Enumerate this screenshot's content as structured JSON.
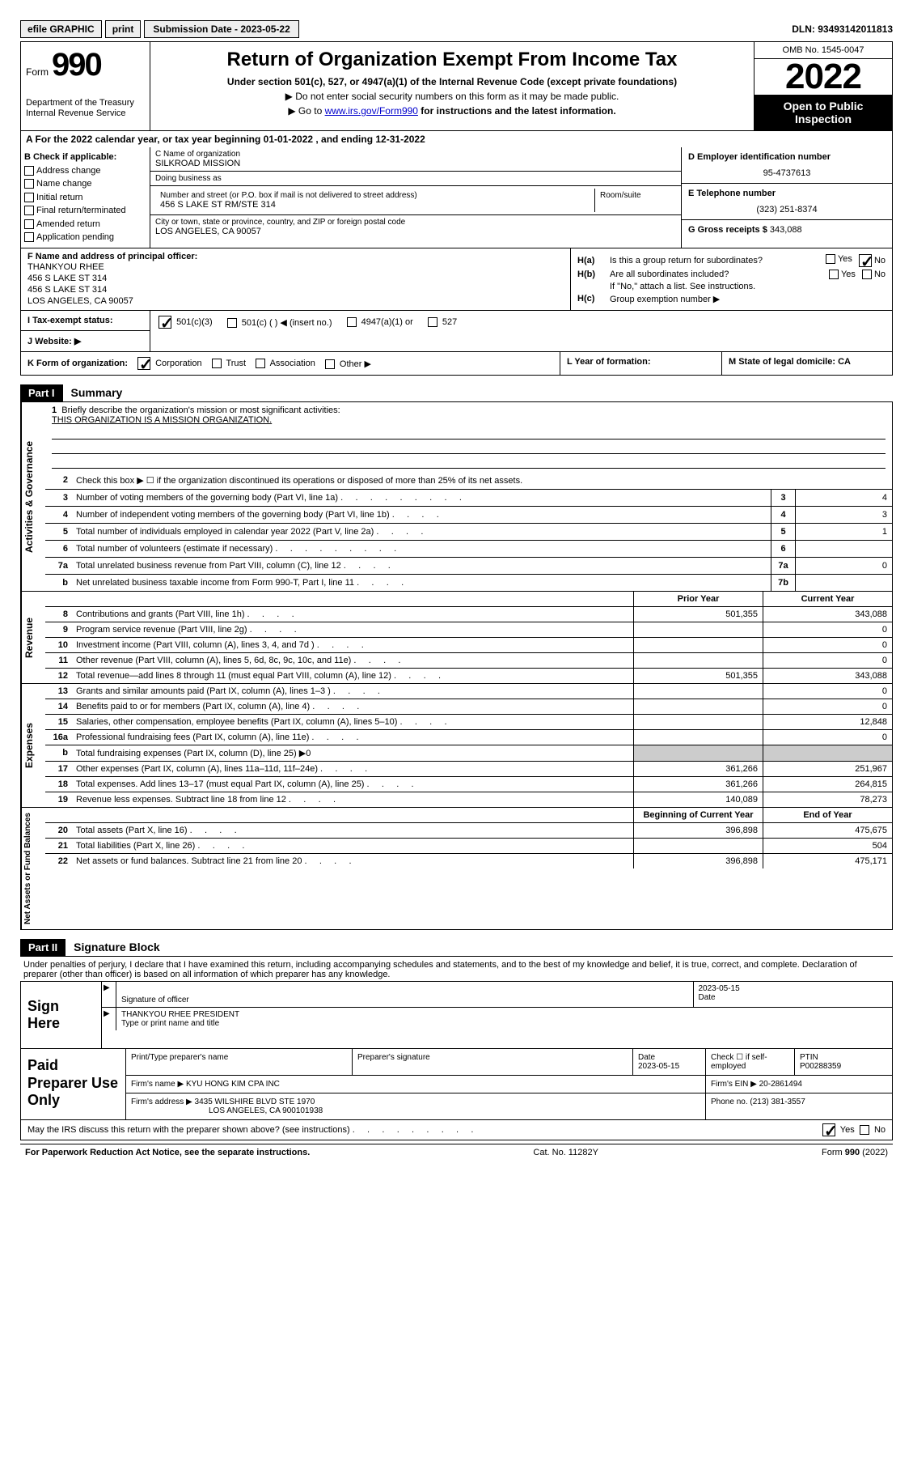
{
  "topbar": {
    "efile": "efile GRAPHIC",
    "print": "print",
    "submission_label": "Submission Date - 2023-05-22",
    "dln": "DLN: 93493142011813"
  },
  "header": {
    "form_word": "Form",
    "form_num": "990",
    "treasury": "Department of the Treasury",
    "irs": "Internal Revenue Service",
    "title": "Return of Organization Exempt From Income Tax",
    "under": "Under section 501(c), 527, or 4947(a)(1) of the Internal Revenue Code (except private foundations)",
    "ssn": "▶ Do not enter social security numbers on this form as it may be made public.",
    "goto_pre": "▶ Go to ",
    "goto_link": "www.irs.gov/Form990",
    "goto_post": " for instructions and the latest information.",
    "omb": "OMB No. 1545-0047",
    "year": "2022",
    "open": "Open to Public Inspection"
  },
  "rowA": "A For the 2022 calendar year, or tax year beginning 01-01-2022    , and ending 12-31-2022",
  "colB": {
    "lbl": "B Check if applicable:",
    "items": [
      "Address change",
      "Name change",
      "Initial return",
      "Final return/terminated",
      "Amended return",
      "Application pending"
    ]
  },
  "colC": {
    "name_lbl": "C Name of organization",
    "name": "SILKROAD MISSION",
    "dba_lbl": "Doing business as",
    "dba": "",
    "street_lbl": "Number and street (or P.O. box if mail is not delivered to street address)",
    "street": "456 S LAKE ST RM/STE 314",
    "room_lbl": "Room/suite",
    "city_lbl": "City or town, state or province, country, and ZIP or foreign postal code",
    "city": "LOS ANGELES, CA   90057"
  },
  "colD": {
    "lbl": "D Employer identification number",
    "val": "95-4737613"
  },
  "colE": {
    "lbl": "E Telephone number",
    "val": "(323) 251-8374"
  },
  "colG": {
    "lbl": "G Gross receipts $",
    "val": "343,088"
  },
  "colF": {
    "lbl": "F Name and address of principal officer:",
    "name": "THANKYOU RHEE",
    "l1": "456 S LAKE ST 314",
    "l2": "456 S LAKE ST 314",
    "l3": "LOS ANGELES, CA   90057"
  },
  "colH": {
    "ha_lbl": "H(a)",
    "ha_txt": "Is this a group return for subordinates?",
    "hb_lbl": "H(b)",
    "hb_txt": "Are all subordinates included?",
    "hb_note": "If \"No,\" attach a list. See instructions.",
    "hc_lbl": "H(c)",
    "hc_txt": "Group exemption number ▶",
    "yes": "Yes",
    "no": "No"
  },
  "rowI": {
    "lbl": "I    Tax-exempt status:",
    "o1": "501(c)(3)",
    "o2": "501(c) (   ) ◀ (insert no.)",
    "o3": "4947(a)(1) or",
    "o4": "527"
  },
  "rowJ": {
    "lbl": "J    Website: ▶"
  },
  "rowK": {
    "lbl": "K Form of organization:",
    "o1": "Corporation",
    "o2": "Trust",
    "o3": "Association",
    "o4": "Other ▶"
  },
  "rowL": "L Year of formation:",
  "rowM": "M State of legal domicile: CA",
  "part1": {
    "hdr": "Part I",
    "title": "Summary"
  },
  "summary": {
    "tab_gov": "Activities & Governance",
    "l1_lbl": "Briefly describe the organization's mission or most significant activities:",
    "l1_val": "THIS ORGANIZATION IS A MISSION ORGANIZATION.",
    "l2": "Check this box ▶ ☐  if the organization discontinued its operations or disposed of more than 25% of its net assets.",
    "l3": "Number of voting members of the governing body (Part VI, line 1a)",
    "l3v": "4",
    "l4": "Number of independent voting members of the governing body (Part VI, line 1b)",
    "l4v": "3",
    "l5": "Total number of individuals employed in calendar year 2022 (Part V, line 2a)",
    "l5v": "1",
    "l6": "Total number of volunteers (estimate if necessary)",
    "l6v": "",
    "l7a": "Total unrelated business revenue from Part VIII, column (C), line 12",
    "l7av": "0",
    "l7b": "Net unrelated business taxable income from Form 990-T, Part I, line 11",
    "l7bv": ""
  },
  "revenue": {
    "tab": "Revenue",
    "prior": "Prior Year",
    "current": "Current Year",
    "lines": [
      {
        "n": "8",
        "d": "Contributions and grants (Part VIII, line 1h)",
        "p": "501,355",
        "c": "343,088"
      },
      {
        "n": "9",
        "d": "Program service revenue (Part VIII, line 2g)",
        "p": "",
        "c": "0"
      },
      {
        "n": "10",
        "d": "Investment income (Part VIII, column (A), lines 3, 4, and 7d )",
        "p": "",
        "c": "0"
      },
      {
        "n": "11",
        "d": "Other revenue (Part VIII, column (A), lines 5, 6d, 8c, 9c, 10c, and 11e)",
        "p": "",
        "c": "0"
      },
      {
        "n": "12",
        "d": "Total revenue—add lines 8 through 11 (must equal Part VIII, column (A), line 12)",
        "p": "501,355",
        "c": "343,088"
      }
    ]
  },
  "expenses": {
    "tab": "Expenses",
    "lines": [
      {
        "n": "13",
        "d": "Grants and similar amounts paid (Part IX, column (A), lines 1–3 )",
        "p": "",
        "c": "0"
      },
      {
        "n": "14",
        "d": "Benefits paid to or for members (Part IX, column (A), line 4)",
        "p": "",
        "c": "0"
      },
      {
        "n": "15",
        "d": "Salaries, other compensation, employee benefits (Part IX, column (A), lines 5–10)",
        "p": "",
        "c": "12,848"
      },
      {
        "n": "16a",
        "d": "Professional fundraising fees (Part IX, column (A), line 11e)",
        "p": "",
        "c": "0"
      },
      {
        "n": "b",
        "d": "Total fundraising expenses (Part IX, column (D), line 25) ▶0",
        "p": "shade",
        "c": "shade"
      },
      {
        "n": "17",
        "d": "Other expenses (Part IX, column (A), lines 11a–11d, 11f–24e)",
        "p": "361,266",
        "c": "251,967"
      },
      {
        "n": "18",
        "d": "Total expenses. Add lines 13–17 (must equal Part IX, column (A), line 25)",
        "p": "361,266",
        "c": "264,815"
      },
      {
        "n": "19",
        "d": "Revenue less expenses. Subtract line 18 from line 12",
        "p": "140,089",
        "c": "78,273"
      }
    ]
  },
  "netassets": {
    "tab": "Net Assets or Fund Balances",
    "begin": "Beginning of Current Year",
    "end": "End of Year",
    "lines": [
      {
        "n": "20",
        "d": "Total assets (Part X, line 16)",
        "p": "396,898",
        "c": "475,675"
      },
      {
        "n": "21",
        "d": "Total liabilities (Part X, line 26)",
        "p": "",
        "c": "504"
      },
      {
        "n": "22",
        "d": "Net assets or fund balances. Subtract line 21 from line 20",
        "p": "396,898",
        "c": "475,171"
      }
    ]
  },
  "part2": {
    "hdr": "Part II",
    "title": "Signature Block"
  },
  "sig_intro": "Under penalties of perjury, I declare that I have examined this return, including accompanying schedules and statements, and to the best of my knowledge and belief, it is true, correct, and complete. Declaration of preparer (other than officer) is based on all information of which preparer has any knowledge.",
  "sign": {
    "left": "Sign Here",
    "sig_lbl": "Signature of officer",
    "date": "2023-05-15",
    "date_lbl": "Date",
    "name": "THANKYOU RHEE  PRESIDENT",
    "name_lbl": "Type or print name and title"
  },
  "paid": {
    "left": "Paid Preparer Use Only",
    "print_lbl": "Print/Type preparer's name",
    "sig_lbl": "Preparer's signature",
    "date_lbl": "Date",
    "date": "2023-05-15",
    "check_lbl": "Check ☐ if self-employed",
    "ptin_lbl": "PTIN",
    "ptin": "P00288359",
    "firm_lbl": "Firm's name     ▶",
    "firm": "KYU HONG KIM CPA INC",
    "ein_lbl": "Firm's EIN ▶",
    "ein": "20-2861494",
    "addr_lbl": "Firm's address ▶",
    "addr1": "3435 WILSHIRE BLVD STE 1970",
    "addr2": "LOS ANGELES, CA   900101938",
    "phone_lbl": "Phone no.",
    "phone": "(213) 381-3557"
  },
  "may_irs": {
    "q": "May the IRS discuss this return with the preparer shown above? (see instructions)",
    "yes": "Yes",
    "no": "No"
  },
  "footer": {
    "pra": "For Paperwork Reduction Act Notice, see the separate instructions.",
    "cat": "Cat. No. 11282Y",
    "form": "Form 990 (2022)"
  }
}
